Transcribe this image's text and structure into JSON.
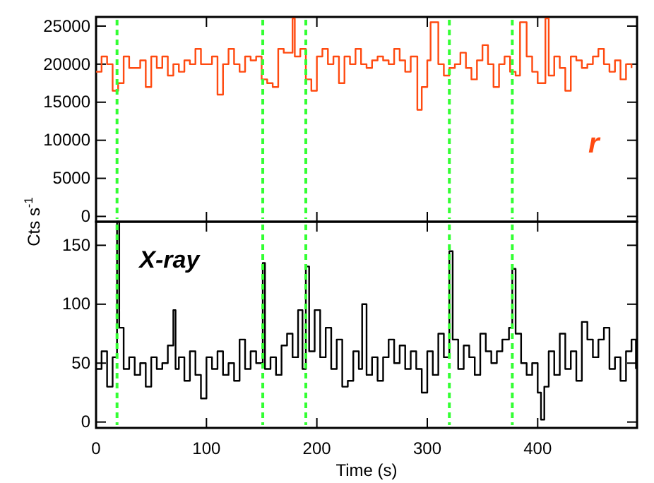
{
  "chart_data": [
    {
      "type": "step",
      "xlim": [
        0,
        490
      ],
      "xticks": [
        0,
        100,
        200,
        300,
        400
      ],
      "ylim": [
        -700,
        26200
      ],
      "yticks": [
        0,
        5000,
        10000,
        15000,
        20000,
        25000
      ],
      "tick_labels": "y",
      "series": [
        {
          "name": "r",
          "color": "#ff4a10",
          "x": [
            0,
            5,
            10,
            15,
            20,
            25,
            30,
            35,
            40,
            45,
            50,
            55,
            60,
            65,
            70,
            75,
            80,
            85,
            90,
            95,
            100,
            105,
            110,
            115,
            120,
            125,
            130,
            135,
            140,
            145,
            150,
            155,
            160,
            165,
            170,
            178,
            180,
            185,
            190,
            195,
            200,
            205,
            210,
            215,
            220,
            225,
            230,
            235,
            240,
            245,
            250,
            255,
            260,
            265,
            270,
            275,
            280,
            285,
            291,
            295,
            300,
            303,
            310,
            315,
            320,
            325,
            330,
            335,
            340,
            345,
            350,
            355,
            360,
            365,
            370,
            375,
            380,
            384,
            390,
            395,
            400,
            407,
            410,
            415,
            420,
            425,
            430,
            435,
            440,
            445,
            450,
            455,
            460,
            465,
            470,
            475,
            480,
            485
          ],
          "values": [
            19000,
            21000,
            20000,
            16500,
            17500,
            21000,
            19500,
            19500,
            20500,
            17000,
            21000,
            19500,
            21000,
            18500,
            20000,
            19000,
            20500,
            20000,
            22000,
            20000,
            20000,
            21000,
            16000,
            20000,
            22000,
            20000,
            19000,
            21000,
            20500,
            21000,
            18000,
            17500,
            17000,
            22000,
            21500,
            26000,
            21000,
            22000,
            18000,
            16500,
            21000,
            22000,
            20000,
            21000,
            17500,
            21000,
            20000,
            22000,
            20000,
            19500,
            20500,
            21000,
            20500,
            20000,
            22000,
            20500,
            19000,
            21000,
            14000,
            17000,
            20500,
            25500,
            20000,
            18500,
            19500,
            20000,
            21500,
            19500,
            18000,
            20500,
            22500,
            20000,
            17000,
            20000,
            21000,
            19000,
            18500,
            25500,
            21000,
            19000,
            17500,
            26000,
            18500,
            21000,
            19500,
            16500,
            21000,
            20500,
            19500,
            20000,
            21000,
            22000,
            20000,
            19000,
            20500,
            18000,
            20000,
            19500
          ]
        }
      ],
      "ref_lines": [
        {
          "axis": "x",
          "value": 19,
          "color": "#33ff33",
          "line_style": "dashed"
        },
        {
          "axis": "x",
          "value": 151,
          "color": "#33ff33",
          "line_style": "dashed"
        },
        {
          "axis": "x",
          "value": 190,
          "color": "#33ff33",
          "line_style": "dashed"
        },
        {
          "axis": "x",
          "value": 320,
          "color": "#33ff33",
          "line_style": "dashed"
        },
        {
          "axis": "x",
          "value": 377,
          "color": "#33ff33",
          "line_style": "dashed"
        }
      ]
    },
    {
      "type": "step",
      "xlabel": "Time (s)",
      "ylabel": "Cts s$^{-1}$",
      "xlim": [
        0,
        490
      ],
      "xticks": [
        0,
        100,
        200,
        300,
        400
      ],
      "ylim": [
        -5,
        170
      ],
      "yticks": [
        0,
        50,
        100,
        150
      ],
      "series": [
        {
          "name": "X-ray",
          "color": "#000000",
          "x": [
            0,
            5,
            10,
            15,
            19,
            21,
            25,
            30,
            35,
            40,
            45,
            50,
            55,
            60,
            65,
            70,
            72,
            75,
            80,
            85,
            90,
            95,
            100,
            105,
            110,
            115,
            120,
            125,
            130,
            135,
            140,
            145,
            151,
            153,
            158,
            163,
            168,
            173,
            178,
            183,
            187,
            190,
            193,
            198,
            203,
            208,
            213,
            218,
            223,
            228,
            233,
            238,
            241,
            245,
            250,
            255,
            260,
            265,
            270,
            275,
            280,
            285,
            290,
            295,
            300,
            305,
            310,
            315,
            320,
            323,
            328,
            333,
            338,
            343,
            348,
            353,
            358,
            363,
            368,
            374,
            377,
            380,
            385,
            390,
            395,
            400,
            403,
            406,
            410,
            415,
            420,
            425,
            430,
            435,
            440,
            445,
            450,
            455,
            460,
            465,
            470,
            475,
            480,
            485,
            489
          ],
          "values": [
            45,
            60,
            30,
            55,
            170,
            80,
            45,
            55,
            40,
            50,
            30,
            55,
            45,
            50,
            65,
            95,
            45,
            55,
            35,
            60,
            40,
            20,
            55,
            45,
            60,
            40,
            50,
            35,
            70,
            45,
            60,
            50,
            135,
            45,
            55,
            40,
            65,
            75,
            55,
            95,
            45,
            132,
            60,
            95,
            55,
            80,
            45,
            70,
            30,
            35,
            60,
            45,
            100,
            40,
            55,
            35,
            55,
            70,
            50,
            65,
            45,
            60,
            45,
            25,
            60,
            40,
            75,
            55,
            145,
            70,
            45,
            65,
            55,
            40,
            75,
            60,
            50,
            60,
            70,
            80,
            130,
            75,
            50,
            40,
            50,
            25,
            2,
            30,
            60,
            40,
            75,
            45,
            60,
            35,
            85,
            70,
            55,
            70,
            80,
            45,
            55,
            35,
            60,
            70,
            45
          ]
        }
      ],
      "ref_lines": [
        {
          "axis": "x",
          "value": 19,
          "color": "#33ff33",
          "line_style": "dashed"
        },
        {
          "axis": "x",
          "value": 151,
          "color": "#33ff33",
          "line_style": "dashed"
        },
        {
          "axis": "x",
          "value": 190,
          "color": "#33ff33",
          "line_style": "dashed"
        },
        {
          "axis": "x",
          "value": 320,
          "color": "#33ff33",
          "line_style": "dashed"
        },
        {
          "axis": "x",
          "value": 377,
          "color": "#33ff33",
          "line_style": "dashed"
        }
      ]
    }
  ]
}
